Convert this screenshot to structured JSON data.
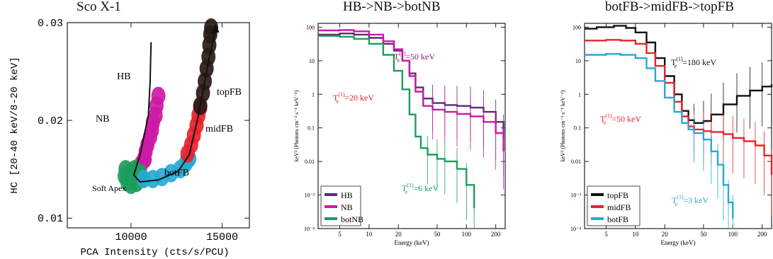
{
  "chart_data": [
    {
      "type": "scatter",
      "title": "Sco X-1",
      "xlabel": "PCA Intensity (cts/s/PCU)",
      "ylabel": "HC [20-40 keV/8-20 keV]",
      "xlim": [
        6500,
        16500
      ],
      "ylim": [
        0.009,
        0.03
      ],
      "xticks": [
        10000,
        15000
      ],
      "xtick_labels": [
        "10000",
        "15000"
      ],
      "yticks": [
        0.01,
        0.02,
        0.03
      ],
      "ytick_labels": [
        "0.01",
        "0.02",
        "0.03"
      ],
      "regions": [
        {
          "name": "HB",
          "color": "#cc1aa6",
          "points": [
            [
              11500,
              0.0225
            ],
            [
              11400,
              0.0215
            ],
            [
              11350,
              0.0205
            ],
            [
              11200,
              0.0198
            ],
            [
              11150,
              0.019
            ],
            [
              11050,
              0.0183
            ],
            [
              10900,
              0.0175
            ],
            [
              10800,
              0.0168
            ],
            [
              10750,
              0.016
            ]
          ]
        },
        {
          "name": "NB",
          "color": "#cc1aa6",
          "points": [
            [
              10700,
              0.016
            ],
            [
              10550,
              0.0155
            ],
            [
              10400,
              0.015
            ]
          ]
        },
        {
          "name": "Soft Apex",
          "color": "#1c9d5e",
          "points": [
            [
              9700,
              0.015
            ],
            [
              9650,
              0.0143
            ],
            [
              9800,
              0.0137
            ],
            [
              10000,
              0.0134
            ],
            [
              10300,
              0.0136
            ],
            [
              10500,
              0.014
            ],
            [
              10500,
              0.0146
            ],
            [
              10200,
              0.015
            ],
            [
              9950,
              0.0146
            ]
          ]
        },
        {
          "name": "botFB",
          "color": "#27a9d4",
          "points": [
            [
              10700,
              0.014
            ],
            [
              11200,
              0.014
            ],
            [
              11700,
              0.0142
            ],
            [
              12200,
              0.0146
            ],
            [
              12700,
              0.015
            ],
            [
              13000,
              0.0156
            ],
            [
              13200,
              0.0161
            ]
          ]
        },
        {
          "name": "midFB",
          "color": "#e8232c",
          "points": [
            [
              13100,
              0.0166
            ],
            [
              13300,
              0.0175
            ],
            [
              13450,
              0.0185
            ],
            [
              13600,
              0.0195
            ],
            [
              13700,
              0.0205
            ],
            [
              13800,
              0.0213
            ]
          ]
        },
        {
          "name": "topFB",
          "color": "#2a1a1a",
          "points": [
            [
              13800,
              0.0215
            ],
            [
              13950,
              0.0228
            ],
            [
              14050,
              0.024
            ],
            [
              14150,
              0.0253
            ],
            [
              14250,
              0.0265
            ],
            [
              14300,
              0.0277
            ],
            [
              14350,
              0.0288
            ],
            [
              14400,
              0.0295
            ]
          ]
        }
      ],
      "annotations": [
        "HB",
        "NB",
        "Soft Apex",
        "botFB",
        "midFB",
        "topFB"
      ]
    },
    {
      "type": "line",
      "title": "HB->NB->botNB",
      "xlabel": "Energy (keV)",
      "ylabel": "keV² (Photons cm⁻² s⁻¹ keV⁻¹)",
      "xscale": "log",
      "yscale": "log",
      "xlim": [
        3,
        250
      ],
      "ylim": [
        0.0001,
        130
      ],
      "xticks": [
        5,
        10,
        20,
        50,
        100,
        200
      ],
      "yticks": [
        100,
        10,
        1,
        0.1,
        0.01,
        0.001,
        0.0001
      ],
      "ytick_labels": [
        "100",
        "10",
        "1",
        "0.1",
        "0.01",
        "10⁻³",
        "10⁻⁴"
      ],
      "legend": "bottom-left",
      "series": [
        {
          "name": "HB",
          "color": "#5b2a7a",
          "x": [
            3,
            5,
            7,
            10,
            14,
            18,
            22,
            26,
            30,
            36,
            45,
            60,
            80,
            110,
            150,
            200,
            240
          ],
          "y": [
            60,
            65,
            60,
            48,
            32,
            20,
            10,
            4.2,
            1.6,
            0.75,
            0.55,
            0.48,
            0.45,
            0.4,
            0.3,
            0.15,
            0.05
          ]
        },
        {
          "name": "NB",
          "color": "#cc1aa6",
          "x": [
            3,
            5,
            7,
            10,
            14,
            18,
            22,
            26,
            30,
            36,
            45,
            60,
            80,
            110,
            150,
            200,
            240
          ],
          "y": [
            80,
            82,
            75,
            60,
            38,
            22,
            10,
            3.5,
            1.2,
            0.45,
            0.35,
            0.3,
            0.26,
            0.22,
            0.15,
            0.07,
            0.02
          ]
        },
        {
          "name": "botNB",
          "color": "#1c9d5e",
          "x": [
            3,
            5,
            7,
            10,
            14,
            18,
            22,
            26,
            30,
            34,
            40,
            50,
            60,
            80,
            100,
            120
          ],
          "y": [
            55,
            52,
            45,
            32,
            15,
            5,
            1.4,
            0.25,
            0.055,
            0.025,
            0.016,
            0.012,
            0.01,
            0.006,
            0.002,
            0.0004
          ]
        }
      ],
      "annotations": [
        {
          "text": "T",
          "sup": "(1)",
          "sub": "e",
          "value": "=50 keV",
          "color": "#8a1a6a"
        },
        {
          "text": "T",
          "sup": "(1)",
          "sub": "e",
          "value": "=20 keV",
          "color": "#e8232c"
        },
        {
          "text": "T",
          "sup": "(1)",
          "sub": "e",
          "value": "=6 keV",
          "color": "#1c9d5e"
        }
      ]
    },
    {
      "type": "line",
      "title": "botFB->midFB->topFB",
      "xlabel": "Energy (keV)",
      "ylabel": "keV² (Photons cm⁻² s⁻¹ keV⁻¹)",
      "xscale": "log",
      "yscale": "log",
      "xlim": [
        3,
        250
      ],
      "ylim": [
        0.0001,
        130
      ],
      "xticks": [
        5,
        10,
        20,
        50,
        100,
        200
      ],
      "yticks": [
        100,
        10,
        1,
        0.1,
        0.01,
        0.001,
        0.0001
      ],
      "ytick_labels": [
        "100",
        "10",
        "1",
        "0.1",
        "0.01",
        "10⁻³",
        "10⁻⁴"
      ],
      "legend": "bottom-left",
      "series": [
        {
          "name": "topFB",
          "color": "#111111",
          "x": [
            3,
            4,
            6,
            8,
            10,
            13,
            16,
            20,
            25,
            30,
            35,
            40,
            50,
            60,
            80,
            110,
            150,
            200,
            250
          ],
          "y": [
            90,
            100,
            110,
            95,
            70,
            35,
            12,
            3.5,
            1.0,
            0.32,
            0.17,
            0.14,
            0.16,
            0.25,
            0.5,
            0.9,
            1.3,
            1.7,
            2.0
          ]
        },
        {
          "name": "midFB",
          "color": "#e8232c",
          "x": [
            3,
            5,
            7,
            10,
            13,
            16,
            20,
            25,
            30,
            35,
            40,
            50,
            60,
            80,
            100,
            130,
            170,
            210,
            250
          ],
          "y": [
            40,
            42,
            40,
            32,
            17,
            7,
            2.2,
            0.6,
            0.22,
            0.11,
            0.09,
            0.08,
            0.075,
            0.065,
            0.05,
            0.04,
            0.03,
            0.015,
            0.004
          ]
        },
        {
          "name": "botFB",
          "color": "#27a9d4",
          "x": [
            3,
            5,
            7,
            10,
            13,
            16,
            20,
            25,
            30,
            35,
            40,
            50,
            60,
            70,
            80,
            90,
            100
          ],
          "y": [
            15,
            16,
            15,
            12,
            6,
            2.5,
            0.8,
            0.3,
            0.14,
            0.09,
            0.07,
            0.045,
            0.02,
            0.008,
            0.002,
            0.0006,
            0.0002
          ]
        }
      ],
      "annotations": [
        {
          "text": "T",
          "sup": "(1)",
          "sub": "e",
          "value": "=180 keV",
          "color": "#111111"
        },
        {
          "text": "T",
          "sup": "(1)",
          "sub": "e",
          "value": "=50 keV",
          "color": "#e8232c"
        },
        {
          "text": "T",
          "sup": "(1)",
          "sub": "e",
          "value": "=3 keV",
          "color": "#27a9d4"
        }
      ]
    }
  ]
}
